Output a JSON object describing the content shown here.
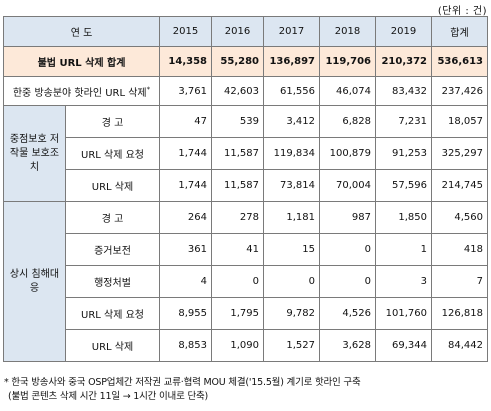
{
  "unit_note": "(단위 : 건)",
  "header": {
    "category": "연     도",
    "years": [
      "2015",
      "2016",
      "2017",
      "2018",
      "2019"
    ],
    "total": "합계"
  },
  "total_row": {
    "label": "불법 URL 삭제 합계",
    "values": [
      "14,358",
      "55,280",
      "136,897",
      "119,706",
      "210,372",
      "536,613"
    ]
  },
  "hanjung_row": {
    "label": "한중 방송분야 핫라인 URL 삭제",
    "mark": "*",
    "values": [
      "3,761",
      "42,603",
      "61,556",
      "46,074",
      "83,432",
      "237,426"
    ]
  },
  "china_group": {
    "label": "중점보호 저작물 보호조치",
    "rows": [
      {
        "label": "경    고",
        "values": [
          "47",
          "539",
          "3,412",
          "6,828",
          "7,231",
          "18,057"
        ]
      },
      {
        "label": "URL 삭제 요청",
        "values": [
          "1,744",
          "11,587",
          "119,834",
          "100,879",
          "91,253",
          "325,297"
        ]
      },
      {
        "label": "URL 삭제",
        "values": [
          "1,744",
          "11,587",
          "73,814",
          "70,004",
          "57,596",
          "214,745"
        ]
      }
    ]
  },
  "regular_group": {
    "label": "상시 침해대응",
    "rows": [
      {
        "label": "경    고",
        "values": [
          "264",
          "278",
          "1,181",
          "987",
          "1,850",
          "4,560"
        ]
      },
      {
        "label": "증거보전",
        "values": [
          "361",
          "41",
          "15",
          "0",
          "1",
          "418"
        ]
      },
      {
        "label": "행정처벌",
        "values": [
          "4",
          "0",
          "0",
          "0",
          "3",
          "7"
        ]
      },
      {
        "label": "URL 삭제 요청",
        "values": [
          "8,955",
          "1,795",
          "9,782",
          "4,526",
          "101,760",
          "126,818"
        ]
      },
      {
        "label": "URL 삭제",
        "values": [
          "8,853",
          "1,090",
          "1,527",
          "3,628",
          "69,344",
          "84,442"
        ]
      }
    ]
  },
  "footnote": {
    "line1": "* 한국 방송사와 중국 OSP업체간 저작권 교류·협력 MOU 체결('15.5월) 계기로 핫라인 구축",
    "line2": "(불법 콘텐츠 삭제 시간 11일 → 1시간 이내로 단축)"
  },
  "colors": {
    "header_bg": "#dce6f1",
    "total_bg": "#fde9d9",
    "border": "#7a7a7a"
  }
}
